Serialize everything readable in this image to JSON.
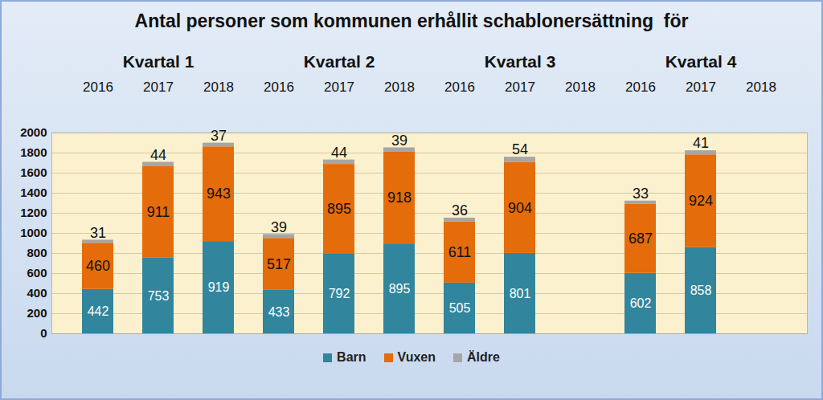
{
  "chart_data": {
    "type": "bar",
    "title": "Antal personer som kommunen erhållit schablonersättning  för",
    "groups": [
      "Kvartal 1",
      "Kvartal 2",
      "Kvartal 3",
      "Kvartal 4"
    ],
    "categories": [
      "2016",
      "2017",
      "2018",
      "2016",
      "2017",
      "2018",
      "2016",
      "2017",
      "2018",
      "2016",
      "2017",
      "2018"
    ],
    "series": [
      {
        "name": "Barn",
        "color": "#31859c",
        "values": [
          442,
          753,
          919,
          433,
          792,
          895,
          505,
          801,
          null,
          602,
          858,
          null
        ]
      },
      {
        "name": "Vuxen",
        "color": "#e46c0a",
        "values": [
          460,
          911,
          943,
          517,
          895,
          918,
          611,
          904,
          null,
          687,
          924,
          null
        ]
      },
      {
        "name": "Äldre",
        "color": "#a6a6a6",
        "values": [
          31,
          44,
          37,
          39,
          44,
          39,
          36,
          54,
          null,
          33,
          41,
          null
        ]
      }
    ],
    "ylim": [
      0,
      2000
    ],
    "yticks": [
      0,
      200,
      400,
      600,
      800,
      1000,
      1200,
      1400,
      1600,
      1800,
      2000
    ],
    "grid": true,
    "stacked": true,
    "data_labels": true,
    "legend": "bottom"
  }
}
